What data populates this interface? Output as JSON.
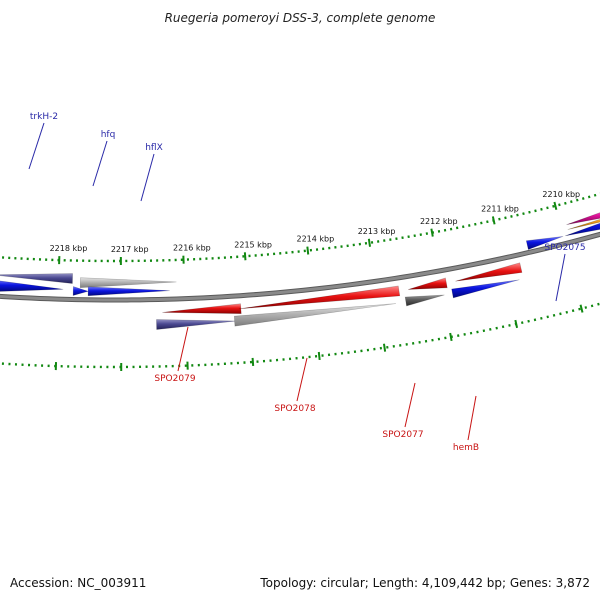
{
  "title": "Ruegeria pomeroyi DSS-3, complete genome",
  "ticks": [
    "2218 kbp",
    "2217 kbp",
    "2216 kbp",
    "2215 kbp",
    "2214 kbp",
    "2213 kbp",
    "2212 kbp",
    "2211 kbp",
    "2210 kbp"
  ],
  "genes_top": [
    "trkH-2",
    "hfq",
    "hflX",
    "SPO2075"
  ],
  "genes_bottom": [
    "SPO2079",
    "SPO2078",
    "SPO2077",
    "hemB"
  ],
  "footer": {
    "accession": "Accession: NC_003911",
    "summary": "Topology: circular; Length: 4,109,442 bp; Genes: 3,872"
  },
  "colors": {
    "backbone": "#8a8a8a",
    "tick_marks": "#118811",
    "blue": "#0a14e0",
    "purple": "#4a4890",
    "gray": "#b4b4b4",
    "dark_gray": "#5a5a5a",
    "red": "#e81212",
    "magenta": "#e0149a",
    "orange": "#f0a020",
    "label_top": "#2a2aa8",
    "label_bottom": "#c81414"
  }
}
